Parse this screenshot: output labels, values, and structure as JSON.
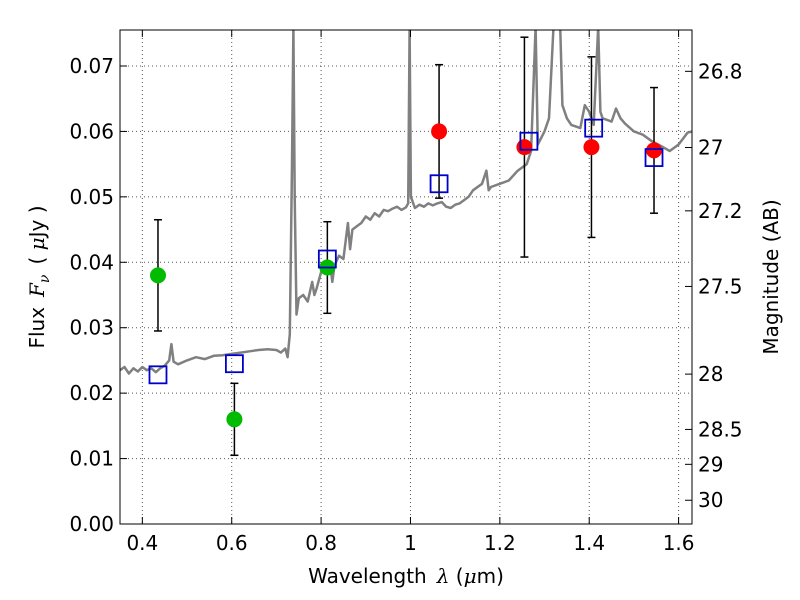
{
  "chart_data": {
    "type": "scatter",
    "xlabel_text": "Wavelength",
    "xlabel_symbol": "λ",
    "xlabel_unit_open": " (",
    "xlabel_unit_mu": "μ",
    "xlabel_unit_rest": "m)",
    "ylabel_text": "Flux",
    "ylabel_symbol": "F",
    "ylabel_sub": "ν",
    "ylabel_unit_open": "( ",
    "ylabel_unit_mu": "μ",
    "ylabel_unit_rest": "Jy )",
    "y2label": "Magnitude (AB)",
    "xlim": [
      0.35,
      1.63
    ],
    "ylim": [
      0.0,
      0.0755
    ],
    "grid": true,
    "xticks": [
      0.4,
      0.6,
      0.8,
      1.0,
      1.2,
      1.4,
      1.6
    ],
    "xtick_labels": [
      "0.4",
      "0.6",
      "0.8",
      "1",
      "1.2",
      "1.4",
      "1.6"
    ],
    "yticks": [
      0.0,
      0.01,
      0.02,
      0.03,
      0.04,
      0.05,
      0.06,
      0.07
    ],
    "ytick_labels": [
      "0.00",
      "0.01",
      "0.02",
      "0.03",
      "0.04",
      "0.05",
      "0.06",
      "0.07"
    ],
    "mag_ticks": [
      26.8,
      27,
      27.2,
      27.5,
      28,
      28.5,
      29,
      30
    ],
    "mag_tick_labels": [
      "26.8",
      "27",
      "27.2",
      "27.5",
      "28",
      "28.5",
      "29",
      "30"
    ],
    "colors": {
      "spectrum": "#808080",
      "green_points": "#00bb00",
      "red_points": "#ff0000",
      "model_squares": "#0000cc",
      "errorbars": "#000000",
      "grid": "#555555"
    },
    "series": [
      {
        "kind": "spectrum-line",
        "points": [
          [
            0.35,
            0.0235
          ],
          [
            0.36,
            0.024
          ],
          [
            0.37,
            0.023
          ],
          [
            0.38,
            0.0238
          ],
          [
            0.39,
            0.0233
          ],
          [
            0.4,
            0.024
          ],
          [
            0.41,
            0.0235
          ],
          [
            0.42,
            0.0238
          ],
          [
            0.43,
            0.0232
          ],
          [
            0.44,
            0.0238
          ],
          [
            0.45,
            0.0242
          ],
          [
            0.46,
            0.025
          ],
          [
            0.465,
            0.0275
          ],
          [
            0.47,
            0.0248
          ],
          [
            0.48,
            0.0244
          ],
          [
            0.5,
            0.025
          ],
          [
            0.52,
            0.0255
          ],
          [
            0.54,
            0.0252
          ],
          [
            0.56,
            0.0257
          ],
          [
            0.58,
            0.0258
          ],
          [
            0.6,
            0.026
          ],
          [
            0.62,
            0.0262
          ],
          [
            0.64,
            0.0264
          ],
          [
            0.66,
            0.0266
          ],
          [
            0.68,
            0.0267
          ],
          [
            0.7,
            0.0266
          ],
          [
            0.71,
            0.0262
          ],
          [
            0.72,
            0.0268
          ],
          [
            0.725,
            0.0255
          ],
          [
            0.73,
            0.029
          ],
          [
            0.735,
            0.055
          ],
          [
            0.738,
            0.076
          ],
          [
            0.741,
            0.05
          ],
          [
            0.745,
            0.032
          ],
          [
            0.75,
            0.0345
          ],
          [
            0.76,
            0.035
          ],
          [
            0.77,
            0.034
          ],
          [
            0.78,
            0.037
          ],
          [
            0.785,
            0.035
          ],
          [
            0.79,
            0.036
          ],
          [
            0.8,
            0.0385
          ],
          [
            0.81,
            0.039
          ],
          [
            0.82,
            0.04
          ],
          [
            0.825,
            0.037
          ],
          [
            0.83,
            0.0395
          ],
          [
            0.84,
            0.041
          ],
          [
            0.85,
            0.0405
          ],
          [
            0.86,
            0.046
          ],
          [
            0.865,
            0.042
          ],
          [
            0.87,
            0.045
          ],
          [
            0.88,
            0.0455
          ],
          [
            0.89,
            0.046
          ],
          [
            0.9,
            0.047
          ],
          [
            0.91,
            0.0465
          ],
          [
            0.92,
            0.0475
          ],
          [
            0.93,
            0.047
          ],
          [
            0.94,
            0.048
          ],
          [
            0.95,
            0.0478
          ],
          [
            0.96,
            0.0482
          ],
          [
            0.97,
            0.0485
          ],
          [
            0.98,
            0.048
          ],
          [
            0.99,
            0.0484
          ],
          [
            0.995,
            0.049
          ],
          [
            0.998,
            0.076
          ],
          [
            1.001,
            0.05
          ],
          [
            1.01,
            0.0483
          ],
          [
            1.02,
            0.0488
          ],
          [
            1.03,
            0.0485
          ],
          [
            1.04,
            0.049
          ],
          [
            1.05,
            0.0487
          ],
          [
            1.06,
            0.049
          ],
          [
            1.07,
            0.0492
          ],
          [
            1.08,
            0.0485
          ],
          [
            1.09,
            0.0483
          ],
          [
            1.1,
            0.0488
          ],
          [
            1.11,
            0.049
          ],
          [
            1.12,
            0.0495
          ],
          [
            1.13,
            0.05
          ],
          [
            1.14,
            0.051
          ],
          [
            1.16,
            0.052
          ],
          [
            1.17,
            0.054
          ],
          [
            1.175,
            0.051
          ],
          [
            1.18,
            0.0515
          ],
          [
            1.2,
            0.052
          ],
          [
            1.22,
            0.0525
          ],
          [
            1.24,
            0.054
          ],
          [
            1.26,
            0.055
          ],
          [
            1.27,
            0.057
          ],
          [
            1.28,
            0.076
          ],
          [
            1.285,
            0.058
          ],
          [
            1.3,
            0.06
          ],
          [
            1.31,
            0.062
          ],
          [
            1.32,
            0.076
          ],
          [
            1.33,
            0.076
          ],
          [
            1.335,
            0.076
          ],
          [
            1.34,
            0.064
          ],
          [
            1.35,
            0.062
          ],
          [
            1.36,
            0.061
          ],
          [
            1.38,
            0.0605
          ],
          [
            1.39,
            0.064
          ],
          [
            1.4,
            0.063
          ],
          [
            1.41,
            0.061
          ],
          [
            1.42,
            0.076
          ],
          [
            1.425,
            0.063
          ],
          [
            1.43,
            0.062
          ],
          [
            1.45,
            0.0615
          ],
          [
            1.46,
            0.0635
          ],
          [
            1.47,
            0.062
          ],
          [
            1.48,
            0.0612
          ],
          [
            1.5,
            0.06
          ],
          [
            1.52,
            0.0595
          ],
          [
            1.54,
            0.0585
          ],
          [
            1.56,
            0.0578
          ],
          [
            1.58,
            0.057
          ],
          [
            1.6,
            0.058
          ],
          [
            1.62,
            0.0598
          ],
          [
            1.63,
            0.06
          ]
        ]
      },
      {
        "kind": "errorbar-points-green",
        "points": [
          {
            "x": 0.435,
            "y": 0.038,
            "err": 0.0085
          },
          {
            "x": 0.606,
            "y": 0.016,
            "err": 0.0055
          },
          {
            "x": 0.814,
            "y": 0.0392,
            "err": 0.007
          }
        ]
      },
      {
        "kind": "errorbar-points-red",
        "points": [
          {
            "x": 1.064,
            "y": 0.06,
            "err": 0.0102
          },
          {
            "x": 1.255,
            "y": 0.0576,
            "err": 0.0168
          },
          {
            "x": 1.405,
            "y": 0.0576,
            "err": 0.0138
          },
          {
            "x": 1.545,
            "y": 0.0571,
            "err": 0.0096
          }
        ]
      },
      {
        "kind": "model-squares",
        "points": [
          {
            "x": 0.435,
            "y": 0.0228
          },
          {
            "x": 0.606,
            "y": 0.0245
          },
          {
            "x": 0.814,
            "y": 0.0405
          },
          {
            "x": 1.064,
            "y": 0.052
          },
          {
            "x": 1.265,
            "y": 0.0585
          },
          {
            "x": 1.41,
            "y": 0.0605
          },
          {
            "x": 1.545,
            "y": 0.056
          }
        ]
      }
    ]
  }
}
